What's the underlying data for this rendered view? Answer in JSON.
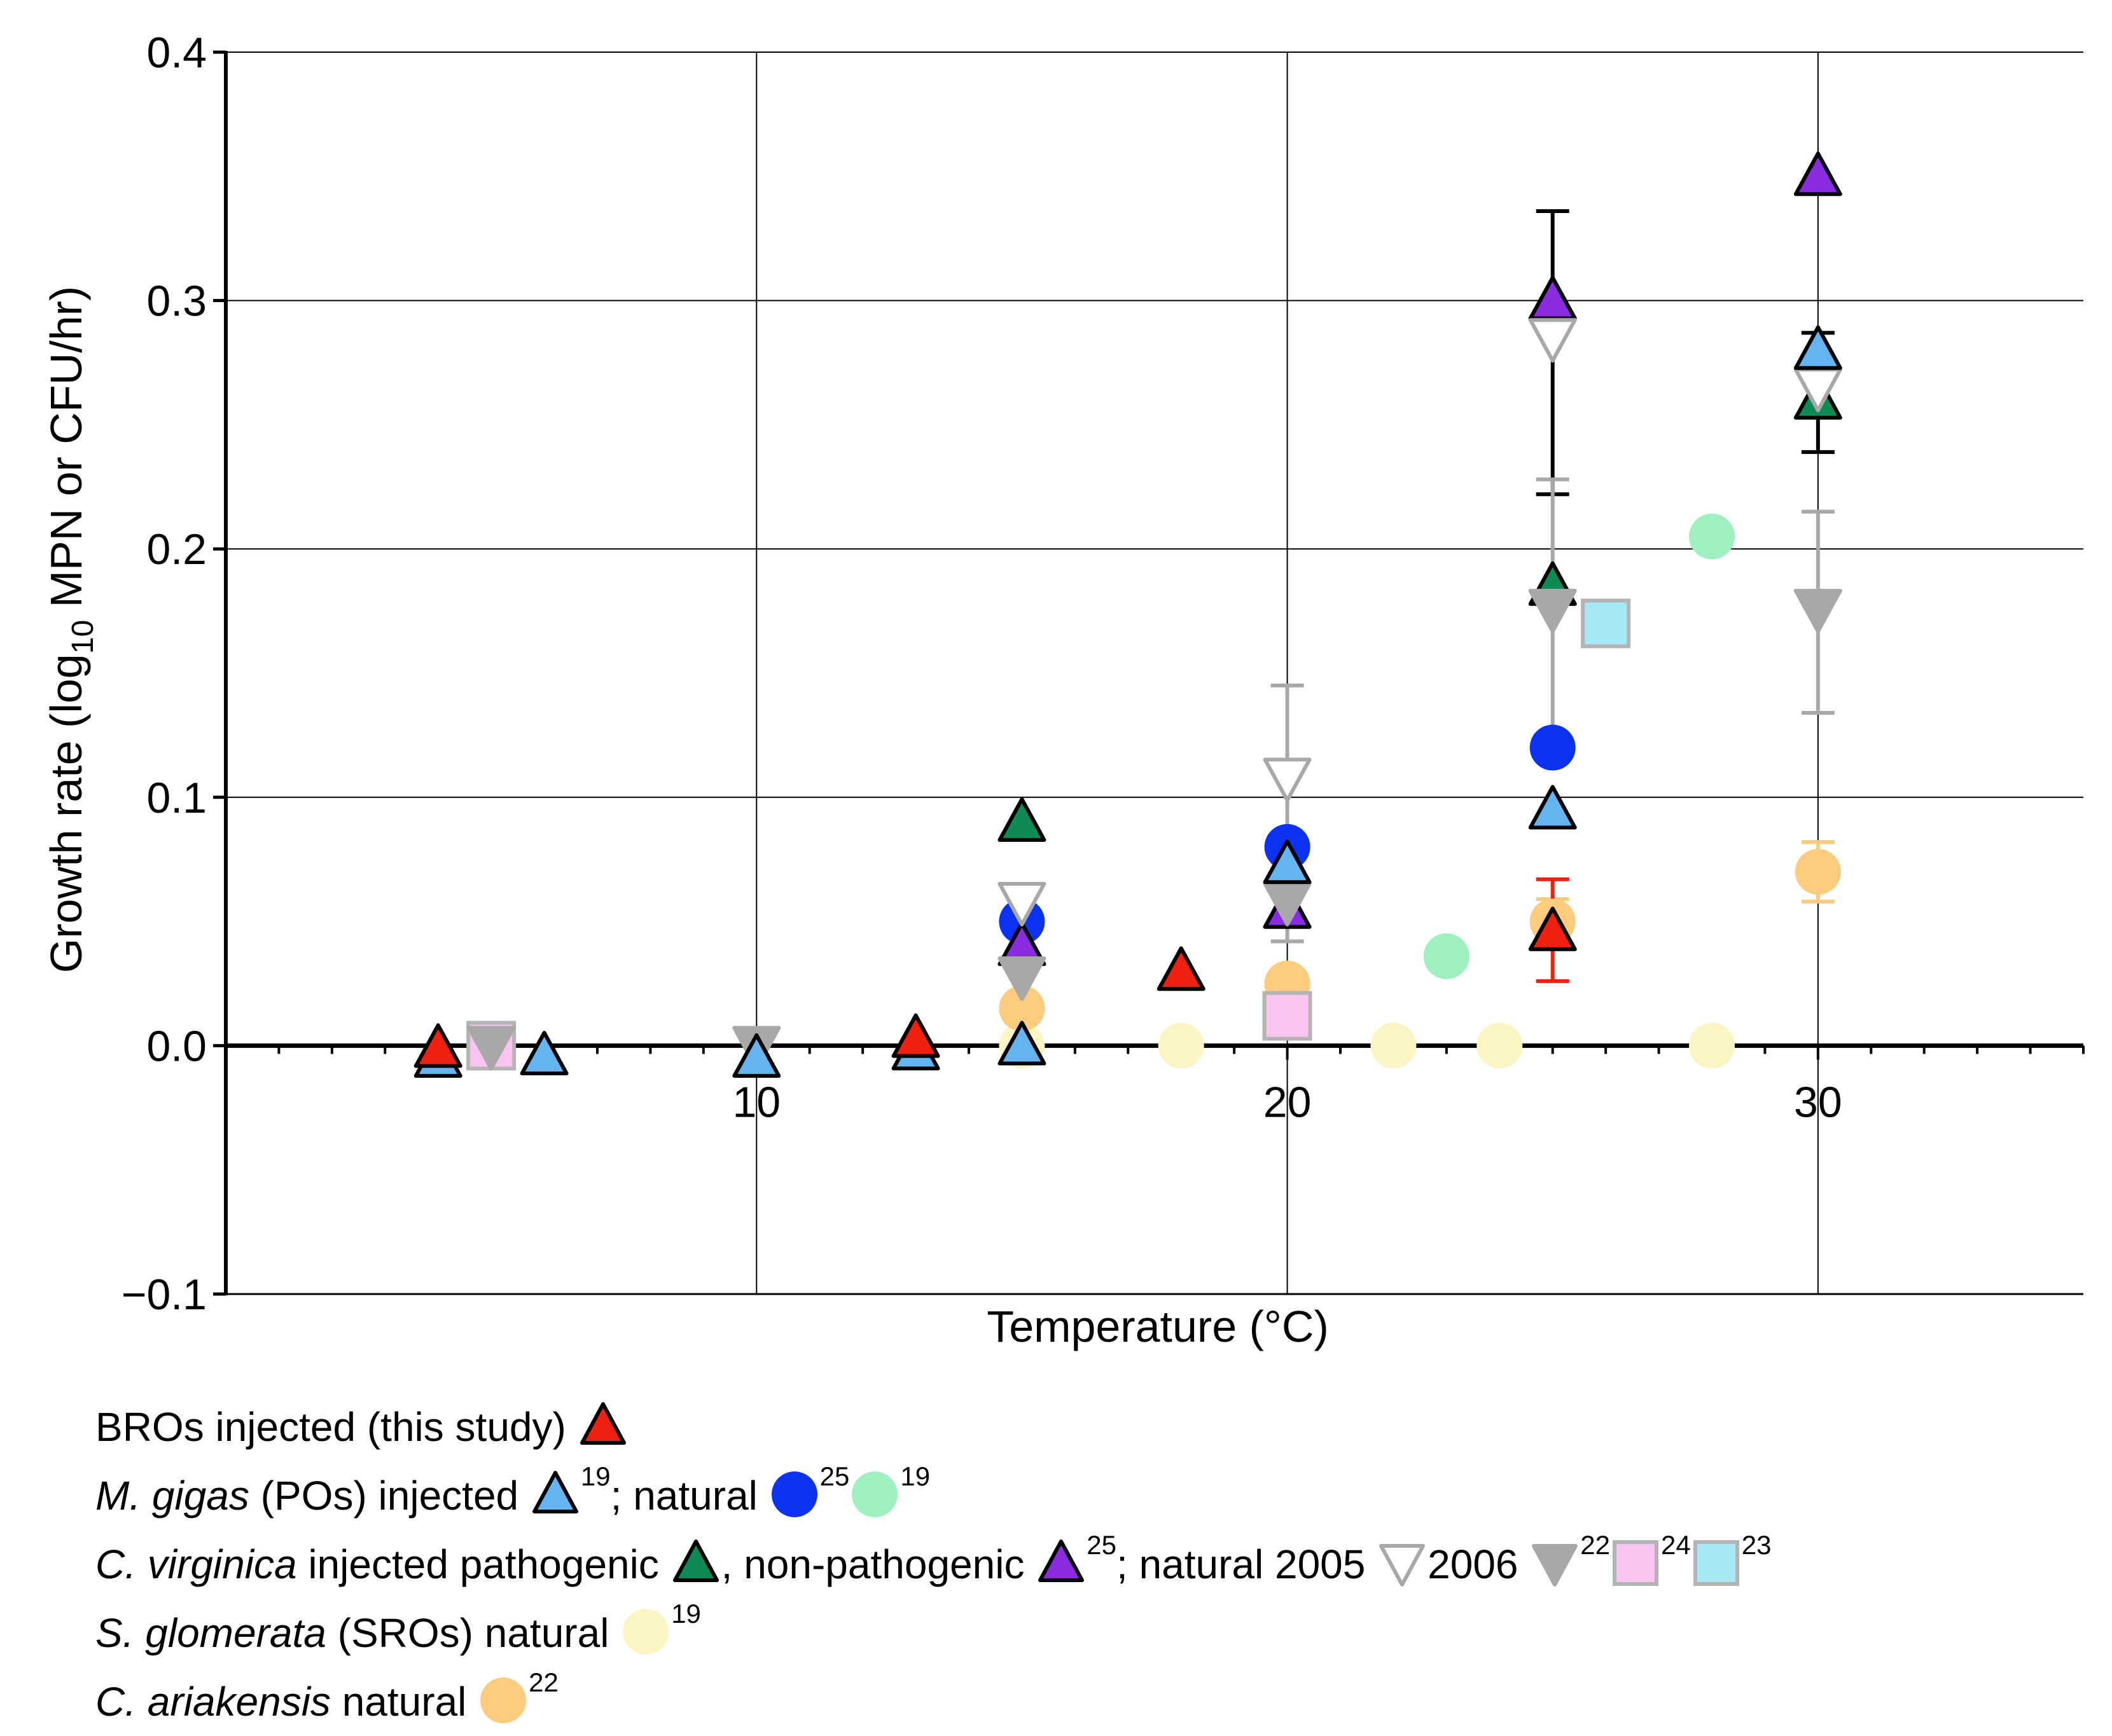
{
  "chart_data": {
    "type": "scatter",
    "xlabel": "Temperature (°C)",
    "ylabel_parts": [
      "Growth rate (log",
      "10",
      " MPN or CFU/hr)"
    ],
    "xlim": [
      0,
      35
    ],
    "ylim": [
      -0.1,
      0.4
    ],
    "xticks": [
      10,
      20,
      30
    ],
    "xtick_labels": [
      "10",
      "20",
      "30"
    ],
    "yticks": [
      -0.1,
      0.0,
      0.1,
      0.2,
      0.3,
      0.4
    ],
    "ytick_labels": [
      "−0.1",
      "0.0",
      "0.1",
      "0.2",
      "0.3",
      "0.4"
    ],
    "grid": true,
    "series": [
      {
        "name": "M. gigas natural 19",
        "marker": "circle",
        "fill": "#9ef0c0",
        "stroke": "none",
        "points": [
          {
            "x": 23,
            "y": 0.036
          },
          {
            "x": 28,
            "y": 0.205
          }
        ]
      },
      {
        "name": "S. glomerata natural 19",
        "marker": "circle",
        "fill": "#fbf5c4",
        "stroke": "none",
        "points": [
          {
            "x": 18,
            "y": 0.0
          },
          {
            "x": 22,
            "y": 0.0
          },
          {
            "x": 24,
            "y": 0.0
          },
          {
            "x": 28,
            "y": 0.0
          },
          {
            "x": 15,
            "y": 0.0
          }
        ]
      },
      {
        "name": "C. ariakensis natural 22",
        "marker": "circle",
        "fill": "#fccc7e",
        "stroke": "none",
        "points": [
          {
            "x": 15,
            "y": 0.015
          },
          {
            "x": 20,
            "y": 0.025
          },
          {
            "x": 25,
            "y": 0.05,
            "err": [
              0.041,
              0.059
            ]
          },
          {
            "x": 30,
            "y": 0.07,
            "err": [
              0.058,
              0.082
            ]
          }
        ]
      },
      {
        "name": "C. virginica natural 24",
        "marker": "square",
        "fill": "#fac4f0",
        "stroke": "#b4b4b4",
        "points": [
          {
            "x": 5,
            "y": 0.0
          },
          {
            "x": 20,
            "y": 0.012
          }
        ]
      },
      {
        "name": "C. virginica natural 23",
        "marker": "square",
        "fill": "#a5e8f6",
        "stroke": "#b4b4b4",
        "points": [
          {
            "x": 26,
            "y": 0.17
          }
        ]
      },
      {
        "name": "M. gigas natural 25",
        "marker": "circle",
        "fill": "#0a32f0",
        "stroke": "none",
        "points": [
          {
            "x": 15,
            "y": 0.05
          },
          {
            "x": 20,
            "y": 0.08
          },
          {
            "x": 25,
            "y": 0.12
          }
        ]
      },
      {
        "name": "C. virginica injected pathogenic",
        "marker": "triangle-up",
        "fill": "#0e8a55",
        "stroke": "#000000",
        "points": [
          {
            "x": 15,
            "y": 0.09
          },
          {
            "x": 20,
            "y": 0.055
          },
          {
            "x": 25,
            "y": 0.185
          },
          {
            "x": 30,
            "y": 0.26
          }
        ]
      },
      {
        "name": "C. virginica injected non-pathogenic 25",
        "marker": "triangle-up",
        "fill": "#8a2be2",
        "stroke": "#000000",
        "points": [
          {
            "x": 15,
            "y": 0.04
          },
          {
            "x": 20,
            "y": 0.055
          },
          {
            "x": 25,
            "y": 0.3,
            "err": [
              0.222,
              0.336
            ]
          },
          {
            "x": 30,
            "y": 0.35
          }
        ]
      },
      {
        "name": "C. virginica natural 2005",
        "marker": "triangle-down",
        "fill": "#ffffff",
        "stroke": "#a8a8a8",
        "points": [
          {
            "x": 15,
            "y": 0.058
          },
          {
            "x": 20,
            "y": 0.108,
            "err": [
              0.07,
              0.145
            ]
          },
          {
            "x": 25,
            "y": 0.285
          },
          {
            "x": 30,
            "y": 0.265
          }
        ]
      },
      {
        "name": "C. virginica natural 2006 22",
        "marker": "triangle-down",
        "fill": "#a8a8a8",
        "stroke": "#a8a8a8",
        "points": [
          {
            "x": 5,
            "y": 0.0
          },
          {
            "x": 10,
            "y": 0.0
          },
          {
            "x": 15,
            "y": 0.028
          },
          {
            "x": 20,
            "y": 0.058,
            "err": [
              0.042,
              0.074
            ]
          },
          {
            "x": 25,
            "y": 0.176,
            "err": [
              0.124,
              0.228
            ]
          },
          {
            "x": 30,
            "y": 0.176,
            "err": [
              0.134,
              0.215
            ]
          }
        ]
      },
      {
        "name": "M. gigas injected 19",
        "marker": "triangle-up",
        "fill": "#64b4f0",
        "stroke": "#000000",
        "points": [
          {
            "x": 4,
            "y": -0.005
          },
          {
            "x": 6,
            "y": -0.004
          },
          {
            "x": 10,
            "y": -0.005
          },
          {
            "x": 13,
            "y": -0.002
          },
          {
            "x": 15,
            "y": 0.0
          },
          {
            "x": 20,
            "y": 0.073
          },
          {
            "x": 25,
            "y": 0.095
          },
          {
            "x": 30,
            "y": 0.28,
            "err": [
              0.239,
              0.287
            ]
          }
        ]
      },
      {
        "name": "BROs injected (this study)",
        "marker": "triangle-up",
        "fill": "#f02010",
        "stroke": "#000000",
        "points": [
          {
            "x": 4,
            "y": -0.001
          },
          {
            "x": 13,
            "y": 0.003
          },
          {
            "x": 18,
            "y": 0.03
          },
          {
            "x": 25,
            "y": 0.046,
            "err": [
              0.026,
              0.067
            ]
          }
        ]
      }
    ]
  },
  "legend": {
    "row1": {
      "label": "BROs injected (this study)"
    },
    "row2": {
      "species": "M. gigas",
      "text1": " (POs) injected ",
      "sup1": "19",
      "text2": "; natural ",
      "sup2": "25",
      "sup3": "19"
    },
    "row3": {
      "species": "C. virginica",
      "text1": " injected pathogenic ",
      "text2": ", non-pathogenic ",
      "sup1": "25",
      "text3": "; natural 2005 ",
      "text4": "2006 ",
      "sup2": "22",
      "sup3": "24",
      "sup4": "23"
    },
    "row4": {
      "species": "S. glomerata",
      "text1": " (SROs) natural ",
      "sup1": "19"
    },
    "row5": {
      "species": "C. ariakensis",
      "text1": " natural ",
      "sup1": "22"
    }
  }
}
